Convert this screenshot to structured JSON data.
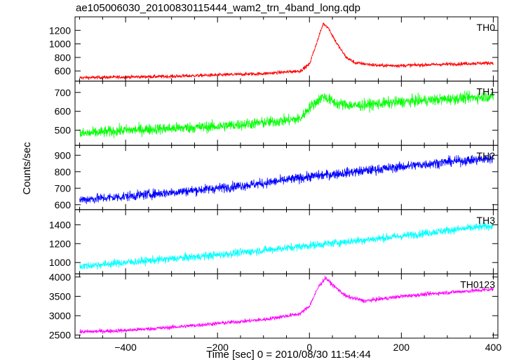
{
  "title": "ae105006030_20100830115444_wam2_trn_4band_long.qdp",
  "chart_data": {
    "type": "line",
    "title": "ae105006030_20100830115444_wam2_trn_4band_long.qdp",
    "xlabel": "Time [sec] 0 = 2010/08/30 11:54:44",
    "ylabel": "Counts/sec",
    "xlim": [
      -510,
      410
    ],
    "xticks": [
      -400,
      -200,
      0,
      200,
      400
    ],
    "xtick_labels": [
      "−400",
      "−200",
      "0",
      "200",
      "400"
    ],
    "panels": [
      {
        "name": "TH0",
        "color": "#ff0000",
        "ylim": [
          450,
          1400
        ],
        "yticks": [
          600,
          800,
          1000,
          1200
        ],
        "x": [
          -500,
          -400,
          -300,
          -200,
          -100,
          -20,
          0,
          20,
          30,
          40,
          60,
          80,
          100,
          150,
          200,
          300,
          400
        ],
        "values": [
          500,
          510,
          520,
          540,
          560,
          600,
          700,
          1100,
          1300,
          1250,
          1000,
          800,
          720,
          680,
          680,
          700,
          720
        ],
        "noise": 25
      },
      {
        "name": "TH1",
        "color": "#00ff00",
        "ylim": [
          420,
          760
        ],
        "yticks": [
          500,
          600,
          700
        ],
        "x": [
          -500,
          -400,
          -300,
          -200,
          -100,
          -20,
          0,
          30,
          60,
          100,
          200,
          300,
          400
        ],
        "values": [
          480,
          500,
          510,
          520,
          540,
          560,
          620,
          680,
          640,
          630,
          650,
          665,
          680
        ],
        "noise": 28
      },
      {
        "name": "TH2",
        "color": "#0000ff",
        "ylim": [
          570,
          960
        ],
        "yticks": [
          600,
          700,
          800,
          900
        ],
        "x": [
          -500,
          -400,
          -300,
          -200,
          -100,
          0,
          100,
          200,
          300,
          400
        ],
        "values": [
          630,
          650,
          675,
          700,
          730,
          770,
          800,
          830,
          860,
          880
        ],
        "noise": 28
      },
      {
        "name": "TH3",
        "color": "#00ffff",
        "ylim": [
          880,
          1560
        ],
        "yticks": [
          1000,
          1200,
          1400
        ],
        "x": [
          -500,
          -400,
          -300,
          -200,
          -100,
          0,
          100,
          200,
          300,
          400
        ],
        "values": [
          960,
          1000,
          1040,
          1080,
          1130,
          1180,
          1230,
          1280,
          1340,
          1390
        ],
        "noise": 40
      },
      {
        "name": "TH0123",
        "color": "#ff00ff",
        "ylim": [
          2420,
          4080
        ],
        "yticks": [
          2500,
          3000,
          3500,
          4000
        ],
        "x": [
          -500,
          -400,
          -300,
          -200,
          -100,
          -20,
          0,
          20,
          35,
          50,
          80,
          120,
          200,
          300,
          400
        ],
        "values": [
          2580,
          2620,
          2700,
          2800,
          2900,
          3050,
          3250,
          3750,
          3980,
          3800,
          3500,
          3380,
          3500,
          3600,
          3680
        ],
        "noise": 50
      }
    ]
  }
}
